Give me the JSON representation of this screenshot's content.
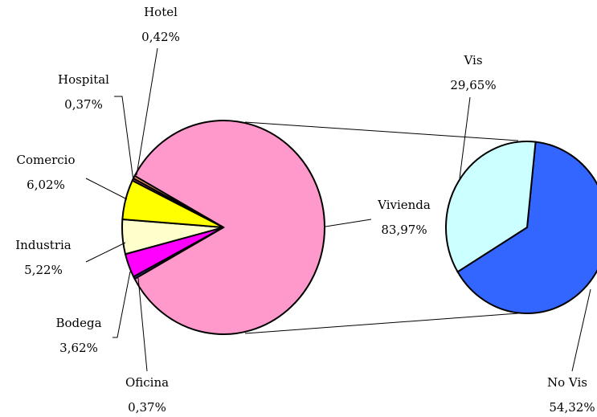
{
  "chart_data": [
    {
      "type": "pie",
      "categories": [
        "Vivienda",
        "Oficina",
        "Bodega",
        "Industria",
        "Comercio",
        "Hospital",
        "Hotel"
      ],
      "values": [
        83.97,
        0.37,
        3.62,
        5.22,
        6.02,
        0.37,
        0.42
      ],
      "value_labels": [
        "83,97%",
        "0,37%",
        "3,62%",
        "5,22%",
        "6,02%",
        "0,37%",
        "0,42%"
      ],
      "colors": [
        "#ff99cc",
        "#333399",
        "#ff00ff",
        "#ffffcc",
        "#ffff00",
        "#993366",
        "#ff9966"
      ]
    },
    {
      "type": "pie",
      "categories": [
        "No Vis",
        "Vis"
      ],
      "values": [
        54.32,
        29.65
      ],
      "value_labels": [
        "54,32%",
        "29,65%"
      ],
      "colors": [
        "#3366ff",
        "#ccffff"
      ]
    }
  ]
}
